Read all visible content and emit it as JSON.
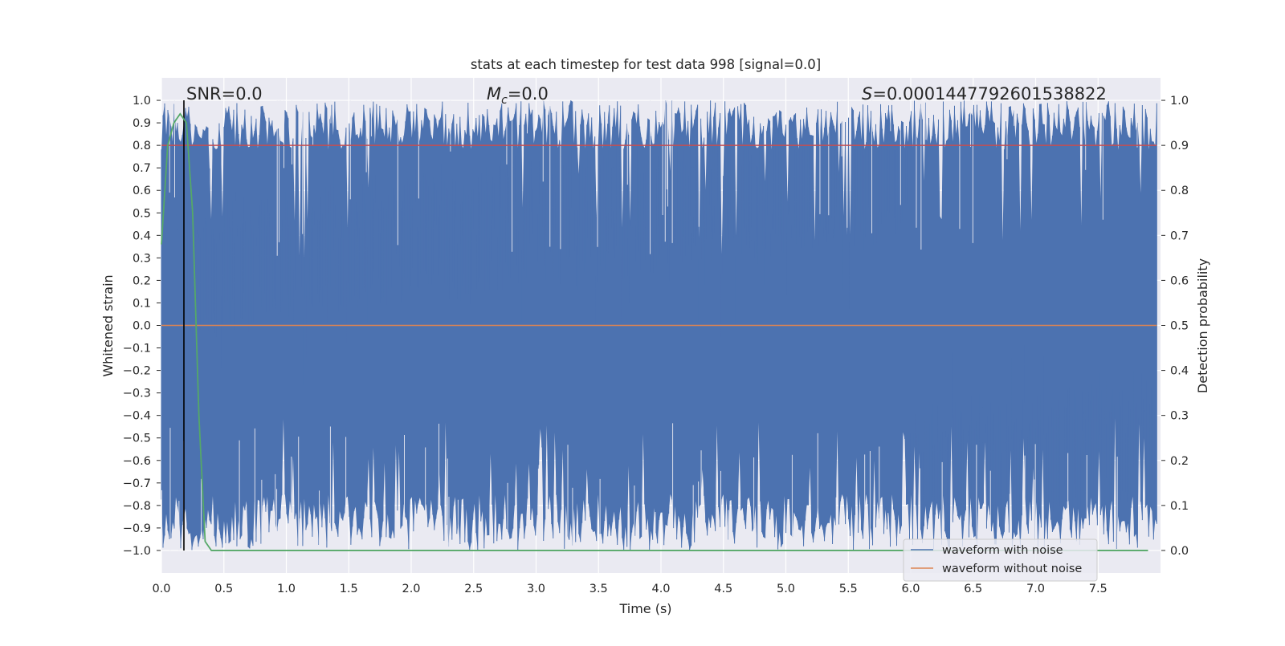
{
  "chart_data": {
    "type": "line",
    "title": "stats at each timestep for test data 998 [signal=0.0]",
    "xlabel": "Time (s)",
    "ylabel_left": "Whitened strain",
    "ylabel_right": "Detection probability",
    "xlim": [
      0.0,
      8.0
    ],
    "ylim_left": [
      -1.1,
      1.1
    ],
    "ylim_right": [
      -0.05,
      1.05
    ],
    "x_ticks": [
      "0.0",
      "0.5",
      "1.0",
      "1.5",
      "2.0",
      "2.5",
      "3.0",
      "3.5",
      "4.0",
      "4.5",
      "5.0",
      "5.5",
      "6.0",
      "6.5",
      "7.0",
      "7.5"
    ],
    "y_ticks_left": [
      "1.0",
      "0.9",
      "0.8",
      "0.7",
      "0.6",
      "0.5",
      "0.4",
      "0.3",
      "0.2",
      "0.1",
      "0.0",
      "−0.1",
      "−0.2",
      "−0.3",
      "−0.4",
      "−0.5",
      "−0.6",
      "−0.7",
      "−0.8",
      "−0.9",
      "−1.0"
    ],
    "y_ticks_right": [
      "1.0",
      "0.9",
      "0.8",
      "0.7",
      "0.6",
      "0.5",
      "0.4",
      "0.3",
      "0.2",
      "0.1",
      "0.0"
    ],
    "grid": true,
    "legend_position": "bottom-right",
    "annotations": {
      "snr": "SNR=0.0",
      "mc_symbol": "M",
      "mc_sub": "c",
      "mc_value": "=0.0",
      "s_symbol": "S",
      "s_value": "=0.0001447792601538822"
    },
    "series": [
      {
        "name": "waveform with noise",
        "axis": "left",
        "color": "#4c72b0",
        "description_range": [
          -1.0,
          1.0
        ]
      },
      {
        "name": "waveform without noise",
        "axis": "left",
        "color": "#dd8452",
        "y_constant": 0.0
      },
      {
        "axis": "right",
        "color": "#c44e52",
        "y_constant": 0.9
      },
      {
        "axis": "right",
        "color": "#55a868",
        "x": [
          0.0,
          0.05,
          0.1,
          0.15,
          0.2,
          0.25,
          0.3,
          0.35,
          0.4,
          0.5,
          1.0,
          2.0,
          3.0,
          4.0,
          5.0,
          6.0,
          7.0,
          7.9
        ],
        "y": [
          0.68,
          0.9,
          0.95,
          0.97,
          0.95,
          0.75,
          0.3,
          0.02,
          0.0,
          0.0,
          0.0,
          0.0,
          0.0,
          0.0,
          0.0,
          0.0,
          0.0,
          0.0
        ]
      }
    ],
    "vline_x": 0.18,
    "vline_color": "#000000",
    "colors": {
      "background": "#eaeaf2",
      "grid": "#ffffff",
      "noise": "#4c72b0",
      "clean": "#dd8452",
      "threshold": "#c44e52",
      "probability": "#55a868"
    }
  }
}
